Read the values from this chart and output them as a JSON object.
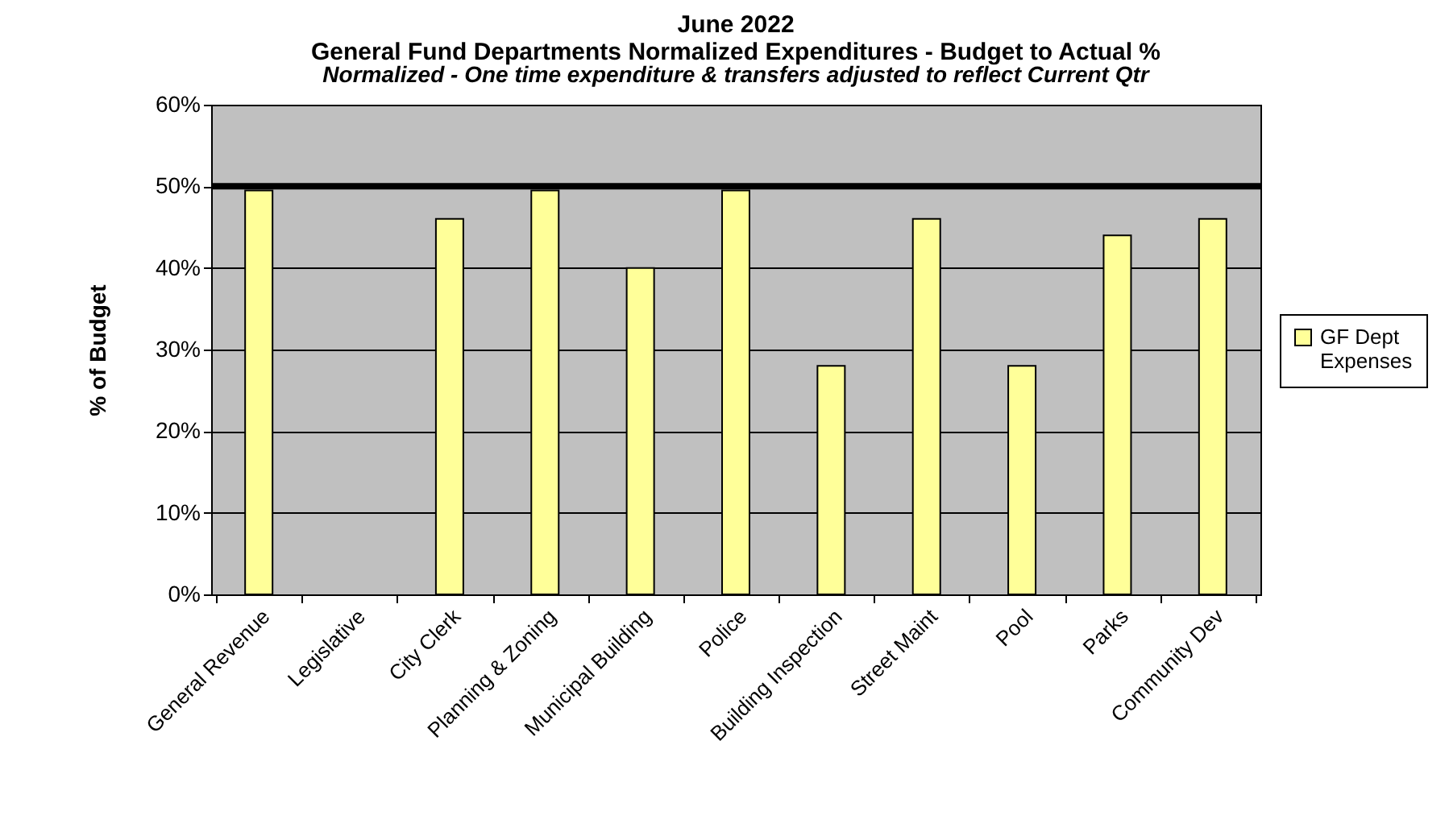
{
  "chart_data": {
    "type": "bar",
    "title": "June 2022",
    "subtitle": "General Fund Departments Normalized Expenditures -  Budget to Actual %",
    "annotations": [
      "Normalized - One time expenditure & transfers adjusted to reflect Current Qtr"
    ],
    "ylabel": "% of Budget",
    "categories": [
      "General Revenue",
      "Legislative",
      "City Clerk",
      "Planning & Zoning",
      "Municipal Building",
      "Police",
      "Building Inspection",
      "Street Maint",
      "Pool",
      "Parks",
      "Community Dev"
    ],
    "series": [
      {
        "name": "GF Dept Expenses",
        "color": "#ffff99",
        "values": [
          49.5,
          null,
          46,
          49.5,
          40,
          49.5,
          28,
          46,
          28,
          44,
          46
        ]
      }
    ],
    "ylim": [
      0,
      60
    ],
    "yticks": [
      {
        "value": 0,
        "label": "0%"
      },
      {
        "value": 10,
        "label": "10%"
      },
      {
        "value": 20,
        "label": "20%"
      },
      {
        "value": 30,
        "label": "30%"
      },
      {
        "value": 40,
        "label": "40%"
      },
      {
        "value": 50,
        "label": "50%"
      },
      {
        "value": 60,
        "label": "60%"
      }
    ],
    "ref_lines": [
      {
        "axis": "y",
        "value": 50,
        "color": "#000000"
      }
    ],
    "grid": "y",
    "legend": "right"
  }
}
